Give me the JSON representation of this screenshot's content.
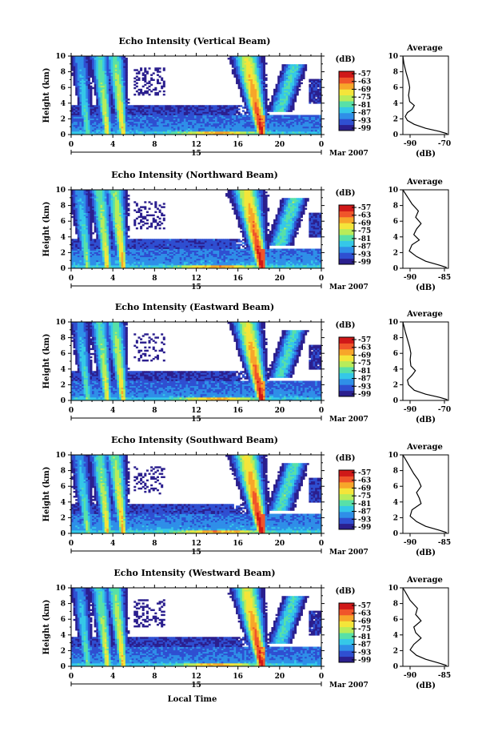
{
  "chart_data": {
    "type": "heatmap",
    "month_label": "Mar 2007",
    "day_label": "15",
    "xlabel": "Local Time",
    "x_ticks": [
      "0",
      "4",
      "8",
      "12",
      "16",
      "20",
      "0"
    ],
    "xlim": [
      0,
      24
    ],
    "ylabel": "Height (km)",
    "y_ticks": [
      "0",
      "2",
      "4",
      "6",
      "8",
      "10"
    ],
    "ylim": [
      0,
      10
    ],
    "colorbar": {
      "unit": "(dB)",
      "ticks": [
        "-57",
        "-63",
        "-69",
        "-75",
        "-81",
        "-87",
        "-93",
        "-99"
      ],
      "range": [
        -99,
        -57
      ],
      "colors": [
        "#2b1f8e",
        "#2f4fd1",
        "#2f8fe8",
        "#35c8e8",
        "#58e0a8",
        "#b8ec5a",
        "#f4e53a",
        "#f7a62a",
        "#f0552a",
        "#d01818"
      ]
    },
    "profile_title": "Average",
    "profile_xlabel": "(dB)",
    "panels": [
      {
        "title": "Echo Intensity (Vertical Beam)",
        "profile_xticks": [
          "-90",
          "-70"
        ],
        "profile_xlim": [
          -90,
          -70
        ],
        "profile": [
          {
            "x": -70.5,
            "y": 0.1
          },
          {
            "x": -74,
            "y": 0.4
          },
          {
            "x": -80,
            "y": 0.8
          },
          {
            "x": -85,
            "y": 1.3
          },
          {
            "x": -88,
            "y": 1.8
          },
          {
            "x": -89,
            "y": 2.3
          },
          {
            "x": -88,
            "y": 2.8
          },
          {
            "x": -86,
            "y": 3.2
          },
          {
            "x": -85,
            "y": 3.7
          },
          {
            "x": -87,
            "y": 4.2
          },
          {
            "x": -87.5,
            "y": 5
          },
          {
            "x": -87,
            "y": 6
          },
          {
            "x": -87.5,
            "y": 6.8
          },
          {
            "x": -88.5,
            "y": 7.8
          },
          {
            "x": -89.5,
            "y": 9
          },
          {
            "x": -90,
            "y": 10
          }
        ]
      },
      {
        "title": "Echo Intensity (Northward Beam)",
        "profile_xticks": [
          "-90",
          "-85"
        ],
        "profile_xlim": [
          -90,
          -85
        ],
        "profile": [
          {
            "x": -85.2,
            "y": 0.1
          },
          {
            "x": -86,
            "y": 0.4
          },
          {
            "x": -87.5,
            "y": 0.9
          },
          {
            "x": -88.5,
            "y": 1.5
          },
          {
            "x": -89.3,
            "y": 2.2
          },
          {
            "x": -89,
            "y": 3
          },
          {
            "x": -88.2,
            "y": 3.6
          },
          {
            "x": -88.8,
            "y": 4.3
          },
          {
            "x": -88.5,
            "y": 5
          },
          {
            "x": -88,
            "y": 5.7
          },
          {
            "x": -88.6,
            "y": 6.5
          },
          {
            "x": -88.3,
            "y": 7.3
          },
          {
            "x": -89,
            "y": 8.2
          },
          {
            "x": -89.5,
            "y": 9.1
          },
          {
            "x": -90,
            "y": 10
          }
        ]
      },
      {
        "title": "Echo Intensity (Eastward Beam)",
        "profile_xticks": [
          "-90",
          "-70"
        ],
        "profile_xlim": [
          -90,
          -70
        ],
        "profile": [
          {
            "x": -70.5,
            "y": 0.1
          },
          {
            "x": -74,
            "y": 0.4
          },
          {
            "x": -80,
            "y": 0.8
          },
          {
            "x": -85,
            "y": 1.3
          },
          {
            "x": -87.5,
            "y": 2
          },
          {
            "x": -88,
            "y": 2.6
          },
          {
            "x": -86,
            "y": 3.2
          },
          {
            "x": -84.5,
            "y": 3.8
          },
          {
            "x": -86.5,
            "y": 4.4
          },
          {
            "x": -86.8,
            "y": 5.2
          },
          {
            "x": -86.5,
            "y": 6
          },
          {
            "x": -87,
            "y": 6.8
          },
          {
            "x": -88,
            "y": 7.8
          },
          {
            "x": -89,
            "y": 8.8
          },
          {
            "x": -90,
            "y": 10
          }
        ]
      },
      {
        "title": "Echo Intensity (Southward Beam)",
        "profile_xticks": [
          "-90",
          "-85"
        ],
        "profile_xlim": [
          -90,
          -85
        ],
        "profile": [
          {
            "x": -85.2,
            "y": 0.1
          },
          {
            "x": -86,
            "y": 0.4
          },
          {
            "x": -87.5,
            "y": 0.9
          },
          {
            "x": -88.5,
            "y": 1.5
          },
          {
            "x": -89.2,
            "y": 2.2
          },
          {
            "x": -89,
            "y": 3
          },
          {
            "x": -88,
            "y": 3.8
          },
          {
            "x": -88.2,
            "y": 4.5
          },
          {
            "x": -88.5,
            "y": 5.2
          },
          {
            "x": -88,
            "y": 6
          },
          {
            "x": -88.3,
            "y": 6.8
          },
          {
            "x": -88.8,
            "y": 7.6
          },
          {
            "x": -89.2,
            "y": 8.4
          },
          {
            "x": -89.6,
            "y": 9.2
          },
          {
            "x": -90,
            "y": 10
          }
        ]
      },
      {
        "title": "Echo Intensity (Westward Beam)",
        "profile_xticks": [
          "-90",
          "-85"
        ],
        "profile_xlim": [
          -90,
          -85
        ],
        "profile": [
          {
            "x": -85.2,
            "y": 0.1
          },
          {
            "x": -86,
            "y": 0.4
          },
          {
            "x": -87.5,
            "y": 0.9
          },
          {
            "x": -88.5,
            "y": 1.4
          },
          {
            "x": -89.2,
            "y": 2.1
          },
          {
            "x": -88.8,
            "y": 2.8
          },
          {
            "x": -88,
            "y": 3.6
          },
          {
            "x": -88.6,
            "y": 4.3
          },
          {
            "x": -88.8,
            "y": 5
          },
          {
            "x": -88,
            "y": 5.8
          },
          {
            "x": -88.6,
            "y": 6.6
          },
          {
            "x": -88.4,
            "y": 7.4
          },
          {
            "x": -89.2,
            "y": 8.4
          },
          {
            "x": -89.6,
            "y": 9.2
          },
          {
            "x": -90,
            "y": 10
          }
        ]
      }
    ]
  }
}
